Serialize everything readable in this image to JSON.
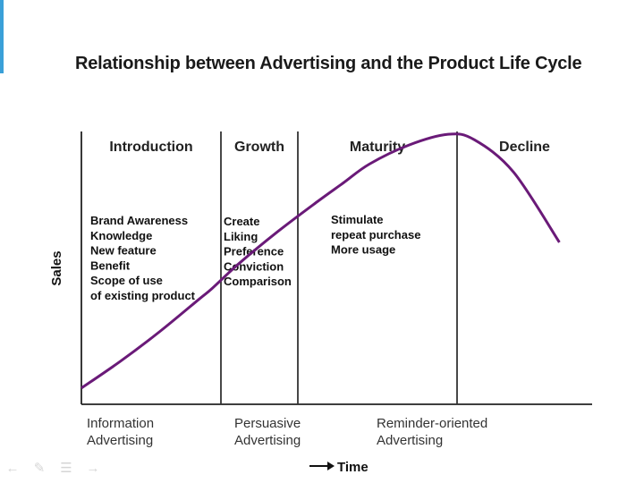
{
  "title": "Relationship between Advertising and the Product Life Cycle",
  "stages": [
    {
      "label": "Introduction",
      "x": 0.5
    },
    {
      "label": "Growth",
      "x": 1.5
    },
    {
      "label": "Maturity",
      "x": 2.5
    },
    {
      "label": "Decline",
      "x": 3.5
    }
  ],
  "stage_boundaries": [
    1,
    2,
    3
  ],
  "objective_blocks": [
    {
      "stage": "Introduction",
      "lines": [
        "Brand Awareness",
        "Knowledge",
        "New feature",
        "Benefit",
        "Scope of use",
        "of existing product"
      ]
    },
    {
      "stage": "Growth",
      "lines": [
        "Create",
        "Liking",
        "Preference",
        "Conviction",
        "Comparison"
      ]
    },
    {
      "stage": "Maturity",
      "lines": [
        "Stimulate",
        "repeat purchase",
        "More usage"
      ]
    }
  ],
  "advertising_types": [
    {
      "line1": "Information",
      "line2": "Advertising"
    },
    {
      "line1": "Persuasive",
      "line2": "Advertising"
    },
    {
      "line1": "Reminder-oriented",
      "line2": "Advertising"
    }
  ],
  "axes": {
    "y_label": "Sales",
    "x_label": "Time"
  },
  "chart_data": {
    "type": "line",
    "x": [
      0,
      0.3,
      0.6,
      0.9,
      1.0,
      1.2,
      1.5,
      1.8,
      2.0,
      2.2,
      2.5,
      2.8,
      3.0,
      3.3,
      3.65
    ],
    "y": [
      0.06,
      0.16,
      0.27,
      0.39,
      0.43,
      0.52,
      0.64,
      0.75,
      0.82,
      0.89,
      0.96,
      1.0,
      0.98,
      0.86,
      0.6
    ],
    "xlim": [
      0,
      3.9
    ],
    "ylim": [
      0,
      1.1
    ],
    "color": "#6a1a78"
  },
  "nav_icons": [
    "arrow-left-icon",
    "pen-icon",
    "menu-icon",
    "arrow-right-icon"
  ]
}
